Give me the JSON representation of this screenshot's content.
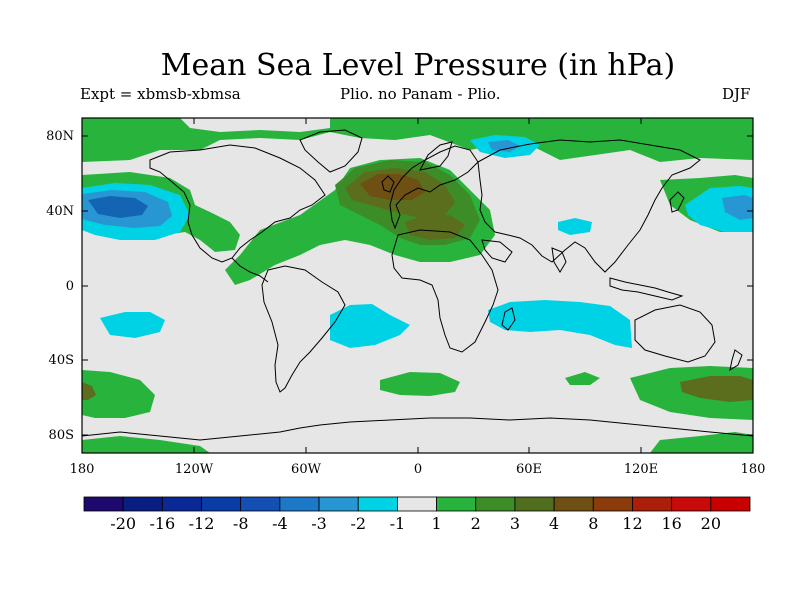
{
  "title": "Mean Sea Level Pressure (in hPa)",
  "subtitle_left": "Expt = xbmsb-xbmsa",
  "subtitle_center": "Plio. no Panam - Plio.",
  "subtitle_right": "DJF",
  "lat_ticks": [
    "80N",
    "40N",
    "0",
    "40S",
    "80S"
  ],
  "lon_ticks": [
    "180",
    "120W",
    "60W",
    "0",
    "60E",
    "120E",
    "180"
  ],
  "colorbar": {
    "labels": [
      "-20",
      "-16",
      "-12",
      "-8",
      "-4",
      "-3",
      "-2",
      "-1",
      "1",
      "2",
      "3",
      "4",
      "8",
      "12",
      "16",
      "20"
    ],
    "colors": [
      "#1e0a6e",
      "#0a1e82",
      "#0a2896",
      "#0a3ca8",
      "#1450b4",
      "#1e78c8",
      "#2896d2",
      "#00d2e6",
      "#e6e6e6",
      "#28b43c",
      "#3c8c28",
      "#506e1e",
      "#6e5014",
      "#8c3c0a",
      "#aa1e0a",
      "#c80a0a",
      "#c80000"
    ]
  },
  "colors": {
    "neutral": "#e6e6e6",
    "green": "#28b43c",
    "dark_green": "#3c8c28",
    "olive": "#5a6e1e",
    "brown": "#6e5014",
    "cyan": "#00d2e6",
    "light_blue": "#2896d2",
    "blue": "#1464b4"
  }
}
